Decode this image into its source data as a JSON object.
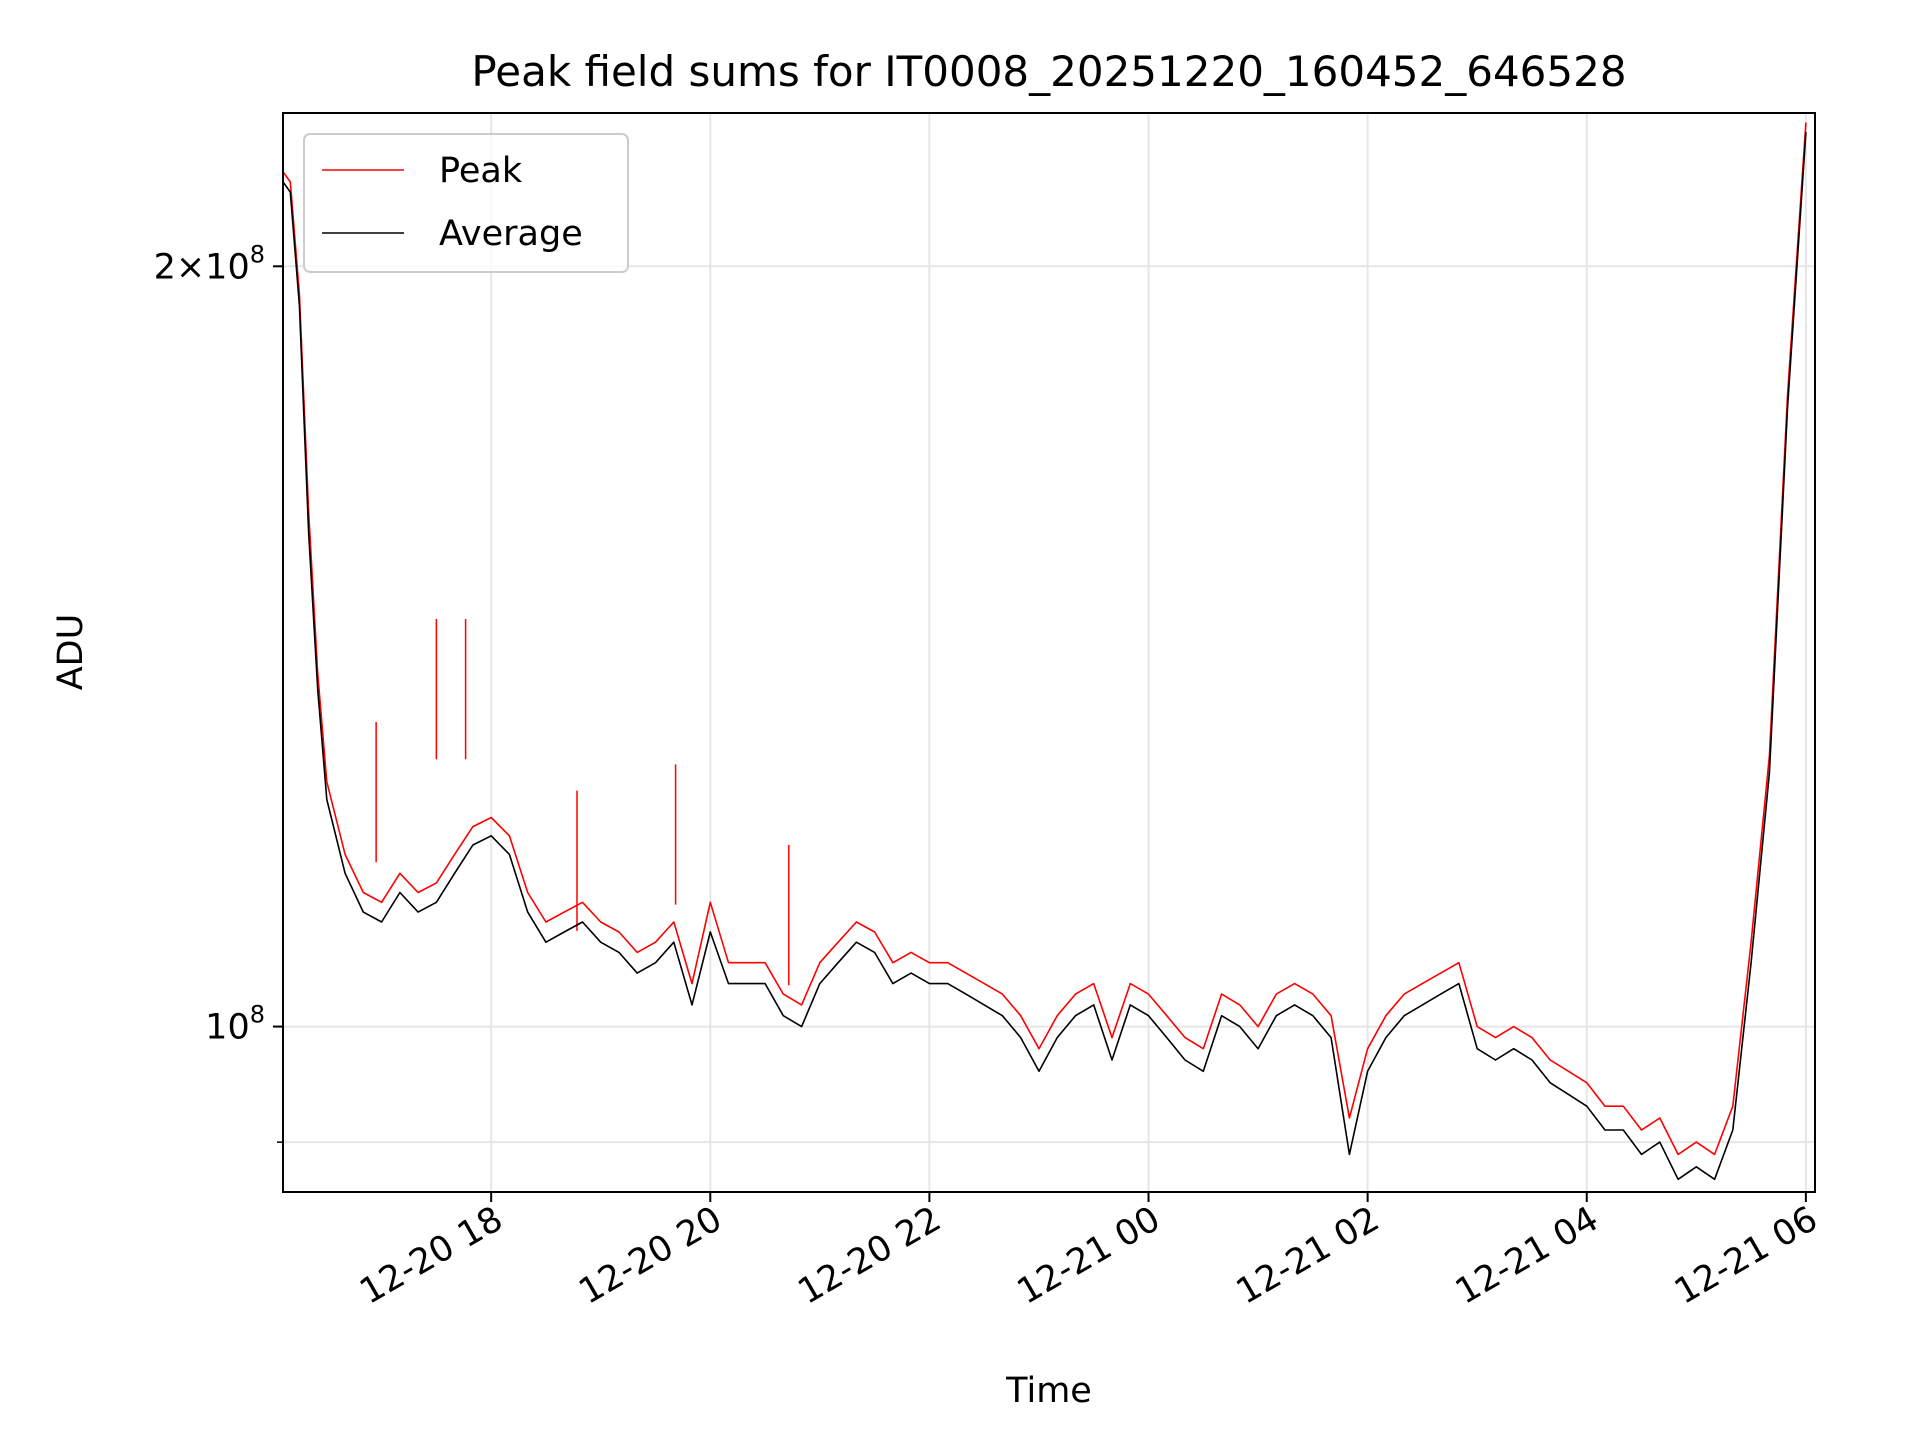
{
  "chart_data": {
    "type": "line",
    "title": "Peak field sums for IT0008_20251220_160452_646528",
    "xlabel": "Time",
    "ylabel": "ADU",
    "y_scale": "log",
    "grid": true,
    "legend_position": "top-left",
    "xlim": [
      "2025-12-20 16:06",
      "2025-12-21 06:05"
    ],
    "ylim": [
      86000000,
      230000000
    ],
    "x_ticks": [
      {
        "label": "12-20 18",
        "value": "2025-12-20 18:00"
      },
      {
        "label": "12-20 20",
        "value": "2025-12-20 20:00"
      },
      {
        "label": "12-20 22",
        "value": "2025-12-20 22:00"
      },
      {
        "label": "12-21 00",
        "value": "2025-12-21 00:00"
      },
      {
        "label": "12-21 02",
        "value": "2025-12-21 02:00"
      },
      {
        "label": "12-21 04",
        "value": "2025-12-21 04:00"
      },
      {
        "label": "12-21 06",
        "value": "2025-12-21 06:00"
      }
    ],
    "y_ticks": [
      {
        "label_base": "2×10",
        "label_exp": "8",
        "value": 200000000
      },
      {
        "label_base": "10",
        "label_exp": "8",
        "value": 100000000
      }
    ],
    "y_minor_ticks": [
      90000000
    ],
    "series": [
      {
        "name": "Peak",
        "color": "#ff0000",
        "x": [
          "2025-12-20 16:06",
          "2025-12-20 16:10",
          "2025-12-20 16:15",
          "2025-12-20 16:20",
          "2025-12-20 16:25",
          "2025-12-20 16:30",
          "2025-12-20 16:40",
          "2025-12-20 16:50",
          "2025-12-20 17:00",
          "2025-12-20 17:10",
          "2025-12-20 17:20",
          "2025-12-20 17:30",
          "2025-12-20 17:40",
          "2025-12-20 17:50",
          "2025-12-20 18:00",
          "2025-12-20 18:10",
          "2025-12-20 18:20",
          "2025-12-20 18:30",
          "2025-12-20 18:40",
          "2025-12-20 18:50",
          "2025-12-20 19:00",
          "2025-12-20 19:10",
          "2025-12-20 19:20",
          "2025-12-20 19:30",
          "2025-12-20 19:40",
          "2025-12-20 19:50",
          "2025-12-20 20:00",
          "2025-12-20 20:10",
          "2025-12-20 20:20",
          "2025-12-20 20:30",
          "2025-12-20 20:40",
          "2025-12-20 20:50",
          "2025-12-20 21:00",
          "2025-12-20 21:10",
          "2025-12-20 21:20",
          "2025-12-20 21:30",
          "2025-12-20 21:40",
          "2025-12-20 21:50",
          "2025-12-20 22:00",
          "2025-12-20 22:10",
          "2025-12-20 22:20",
          "2025-12-20 22:30",
          "2025-12-20 22:40",
          "2025-12-20 22:50",
          "2025-12-20 23:00",
          "2025-12-20 23:10",
          "2025-12-20 23:20",
          "2025-12-20 23:30",
          "2025-12-20 23:40",
          "2025-12-20 23:50",
          "2025-12-21 00:00",
          "2025-12-21 00:10",
          "2025-12-21 00:20",
          "2025-12-21 00:30",
          "2025-12-21 00:40",
          "2025-12-21 00:50",
          "2025-12-21 01:00",
          "2025-12-21 01:10",
          "2025-12-21 01:20",
          "2025-12-21 01:30",
          "2025-12-21 01:40",
          "2025-12-21 01:50",
          "2025-12-21 02:00",
          "2025-12-21 02:10",
          "2025-12-21 02:20",
          "2025-12-21 02:30",
          "2025-12-21 02:40",
          "2025-12-21 02:50",
          "2025-12-21 03:00",
          "2025-12-21 03:10",
          "2025-12-21 03:20",
          "2025-12-21 03:30",
          "2025-12-21 03:40",
          "2025-12-21 03:50",
          "2025-12-21 04:00",
          "2025-12-21 04:10",
          "2025-12-21 04:20",
          "2025-12-21 04:30",
          "2025-12-21 04:40",
          "2025-12-21 04:50",
          "2025-12-21 05:00",
          "2025-12-21 05:10",
          "2025-12-21 05:20",
          "2025-12-21 05:30",
          "2025-12-21 05:40",
          "2025-12-21 05:50",
          "2025-12-21 06:00"
        ],
        "y": [
          218000000,
          216000000,
          195000000,
          160000000,
          138000000,
          125000000,
          117000000,
          113000000,
          112000000,
          115000000,
          113000000,
          114000000,
          117000000,
          120000000,
          121000000,
          119000000,
          113000000,
          110000000,
          111000000,
          112000000,
          110000000,
          109000000,
          107000000,
          108000000,
          110000000,
          104000000,
          112000000,
          106000000,
          106000000,
          106000000,
          103000000,
          102000000,
          106000000,
          108000000,
          110000000,
          109000000,
          106000000,
          107000000,
          106000000,
          106000000,
          105000000,
          104000000,
          103000000,
          101000000,
          98000000,
          101000000,
          103000000,
          104000000,
          99000000,
          104000000,
          103000000,
          101000000,
          99000000,
          98000000,
          103000000,
          102000000,
          100000000,
          103000000,
          104000000,
          103000000,
          101000000,
          92000000,
          98000000,
          101000000,
          103000000,
          104000000,
          105000000,
          106000000,
          100000000,
          99000000,
          100000000,
          99000000,
          97000000,
          96000000,
          95000000,
          93000000,
          93000000,
          91000000,
          92000000,
          89000000,
          90000000,
          89000000,
          93000000,
          108000000,
          128000000,
          178000000,
          228000000
        ]
      },
      {
        "name": "Average",
        "color": "#000000",
        "x": [
          "2025-12-20 16:06",
          "2025-12-20 16:10",
          "2025-12-20 16:15",
          "2025-12-20 16:20",
          "2025-12-20 16:25",
          "2025-12-20 16:30",
          "2025-12-20 16:40",
          "2025-12-20 16:50",
          "2025-12-20 17:00",
          "2025-12-20 17:10",
          "2025-12-20 17:20",
          "2025-12-20 17:30",
          "2025-12-20 17:40",
          "2025-12-20 17:50",
          "2025-12-20 18:00",
          "2025-12-20 18:10",
          "2025-12-20 18:20",
          "2025-12-20 18:30",
          "2025-12-20 18:40",
          "2025-12-20 18:50",
          "2025-12-20 19:00",
          "2025-12-20 19:10",
          "2025-12-20 19:20",
          "2025-12-20 19:30",
          "2025-12-20 19:40",
          "2025-12-20 19:50",
          "2025-12-20 20:00",
          "2025-12-20 20:10",
          "2025-12-20 20:20",
          "2025-12-20 20:30",
          "2025-12-20 20:40",
          "2025-12-20 20:50",
          "2025-12-20 21:00",
          "2025-12-20 21:10",
          "2025-12-20 21:20",
          "2025-12-20 21:30",
          "2025-12-20 21:40",
          "2025-12-20 21:50",
          "2025-12-20 22:00",
          "2025-12-20 22:10",
          "2025-12-20 22:20",
          "2025-12-20 22:30",
          "2025-12-20 22:40",
          "2025-12-20 22:50",
          "2025-12-20 23:00",
          "2025-12-20 23:10",
          "2025-12-20 23:20",
          "2025-12-20 23:30",
          "2025-12-20 23:40",
          "2025-12-20 23:50",
          "2025-12-21 00:00",
          "2025-12-21 00:10",
          "2025-12-21 00:20",
          "2025-12-21 00:30",
          "2025-12-21 00:40",
          "2025-12-21 00:50",
          "2025-12-21 01:00",
          "2025-12-21 01:10",
          "2025-12-21 01:20",
          "2025-12-21 01:30",
          "2025-12-21 01:40",
          "2025-12-21 01:50",
          "2025-12-21 02:00",
          "2025-12-21 02:10",
          "2025-12-21 02:20",
          "2025-12-21 02:30",
          "2025-12-21 02:40",
          "2025-12-21 02:50",
          "2025-12-21 03:00",
          "2025-12-21 03:10",
          "2025-12-21 03:20",
          "2025-12-21 03:30",
          "2025-12-21 03:40",
          "2025-12-21 03:50",
          "2025-12-21 04:00",
          "2025-12-21 04:10",
          "2025-12-21 04:20",
          "2025-12-21 04:30",
          "2025-12-21 04:40",
          "2025-12-21 04:50",
          "2025-12-21 05:00",
          "2025-12-21 05:10",
          "2025-12-21 05:20",
          "2025-12-21 05:30",
          "2025-12-21 05:40",
          "2025-12-21 05:50",
          "2025-12-21 06:00"
        ],
        "y": [
          216000000,
          214000000,
          193000000,
          157000000,
          136000000,
          123000000,
          115000000,
          111000000,
          110000000,
          113000000,
          111000000,
          112000000,
          115000000,
          118000000,
          119000000,
          117000000,
          111000000,
          108000000,
          109000000,
          110000000,
          108000000,
          107000000,
          105000000,
          106000000,
          108000000,
          102000000,
          109000000,
          104000000,
          104000000,
          104000000,
          101000000,
          100000000,
          104000000,
          106000000,
          108000000,
          107000000,
          104000000,
          105000000,
          104000000,
          104000000,
          103000000,
          102000000,
          101000000,
          99000000,
          96000000,
          99000000,
          101000000,
          102000000,
          97000000,
          102000000,
          101000000,
          99000000,
          97000000,
          96000000,
          101000000,
          100000000,
          98000000,
          101000000,
          102000000,
          101000000,
          99000000,
          89000000,
          96000000,
          99000000,
          101000000,
          102000000,
          103000000,
          104000000,
          98000000,
          97000000,
          98000000,
          97000000,
          95000000,
          94000000,
          93000000,
          91000000,
          91000000,
          89000000,
          90000000,
          87000000,
          88000000,
          87000000,
          91000000,
          106000000,
          126000000,
          176000000,
          226000000
        ]
      }
    ],
    "annotations_spikes_peak": [
      {
        "x": "2025-12-20 16:57",
        "y": 132000000
      },
      {
        "x": "2025-12-20 17:30",
        "y": 145000000
      },
      {
        "x": "2025-12-20 17:46",
        "y": 145000000
      },
      {
        "x": "2025-12-20 18:47",
        "y": 124000000
      },
      {
        "x": "2025-12-20 19:41",
        "y": 127000000
      },
      {
        "x": "2025-12-20 20:43",
        "y": 118000000
      }
    ]
  }
}
